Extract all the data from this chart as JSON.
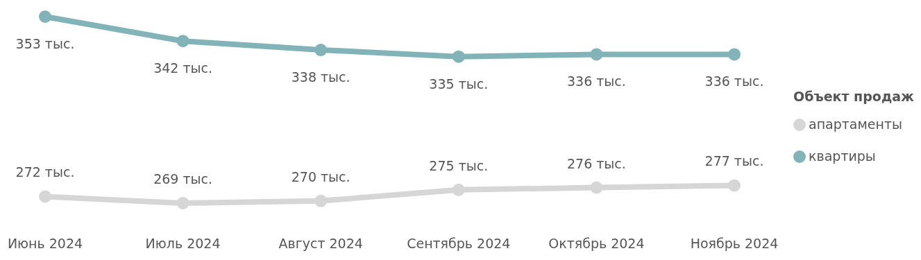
{
  "chart_data": {
    "type": "line",
    "categories": [
      "Июнь 2024",
      "Июль 2024",
      "Август 2024",
      "Сентябрь 2024",
      "Октябрь 2024",
      "Ноябрь 2024"
    ],
    "legend_title": "Объект продаж",
    "legend": "right",
    "marker": "circle",
    "line_style": "solid",
    "series": [
      {
        "name": "апартаменты",
        "color": "#d6d6d6",
        "values": [
          272,
          269,
          270,
          275,
          276,
          277
        ],
        "value_labels": [
          "272 тыс.",
          "269 тыс.",
          "270 тыс.",
          "275 тыс.",
          "276 тыс.",
          "277 тыс."
        ]
      },
      {
        "name": "квартиры",
        "color": "#82b3b8",
        "values": [
          353,
          342,
          338,
          335,
          336,
          336
        ],
        "value_labels": [
          "353 тыс.",
          "342 тыс.",
          "338 тыс.",
          "335 тыс.",
          "336 тыс.",
          "336 тыс."
        ]
      }
    ]
  }
}
